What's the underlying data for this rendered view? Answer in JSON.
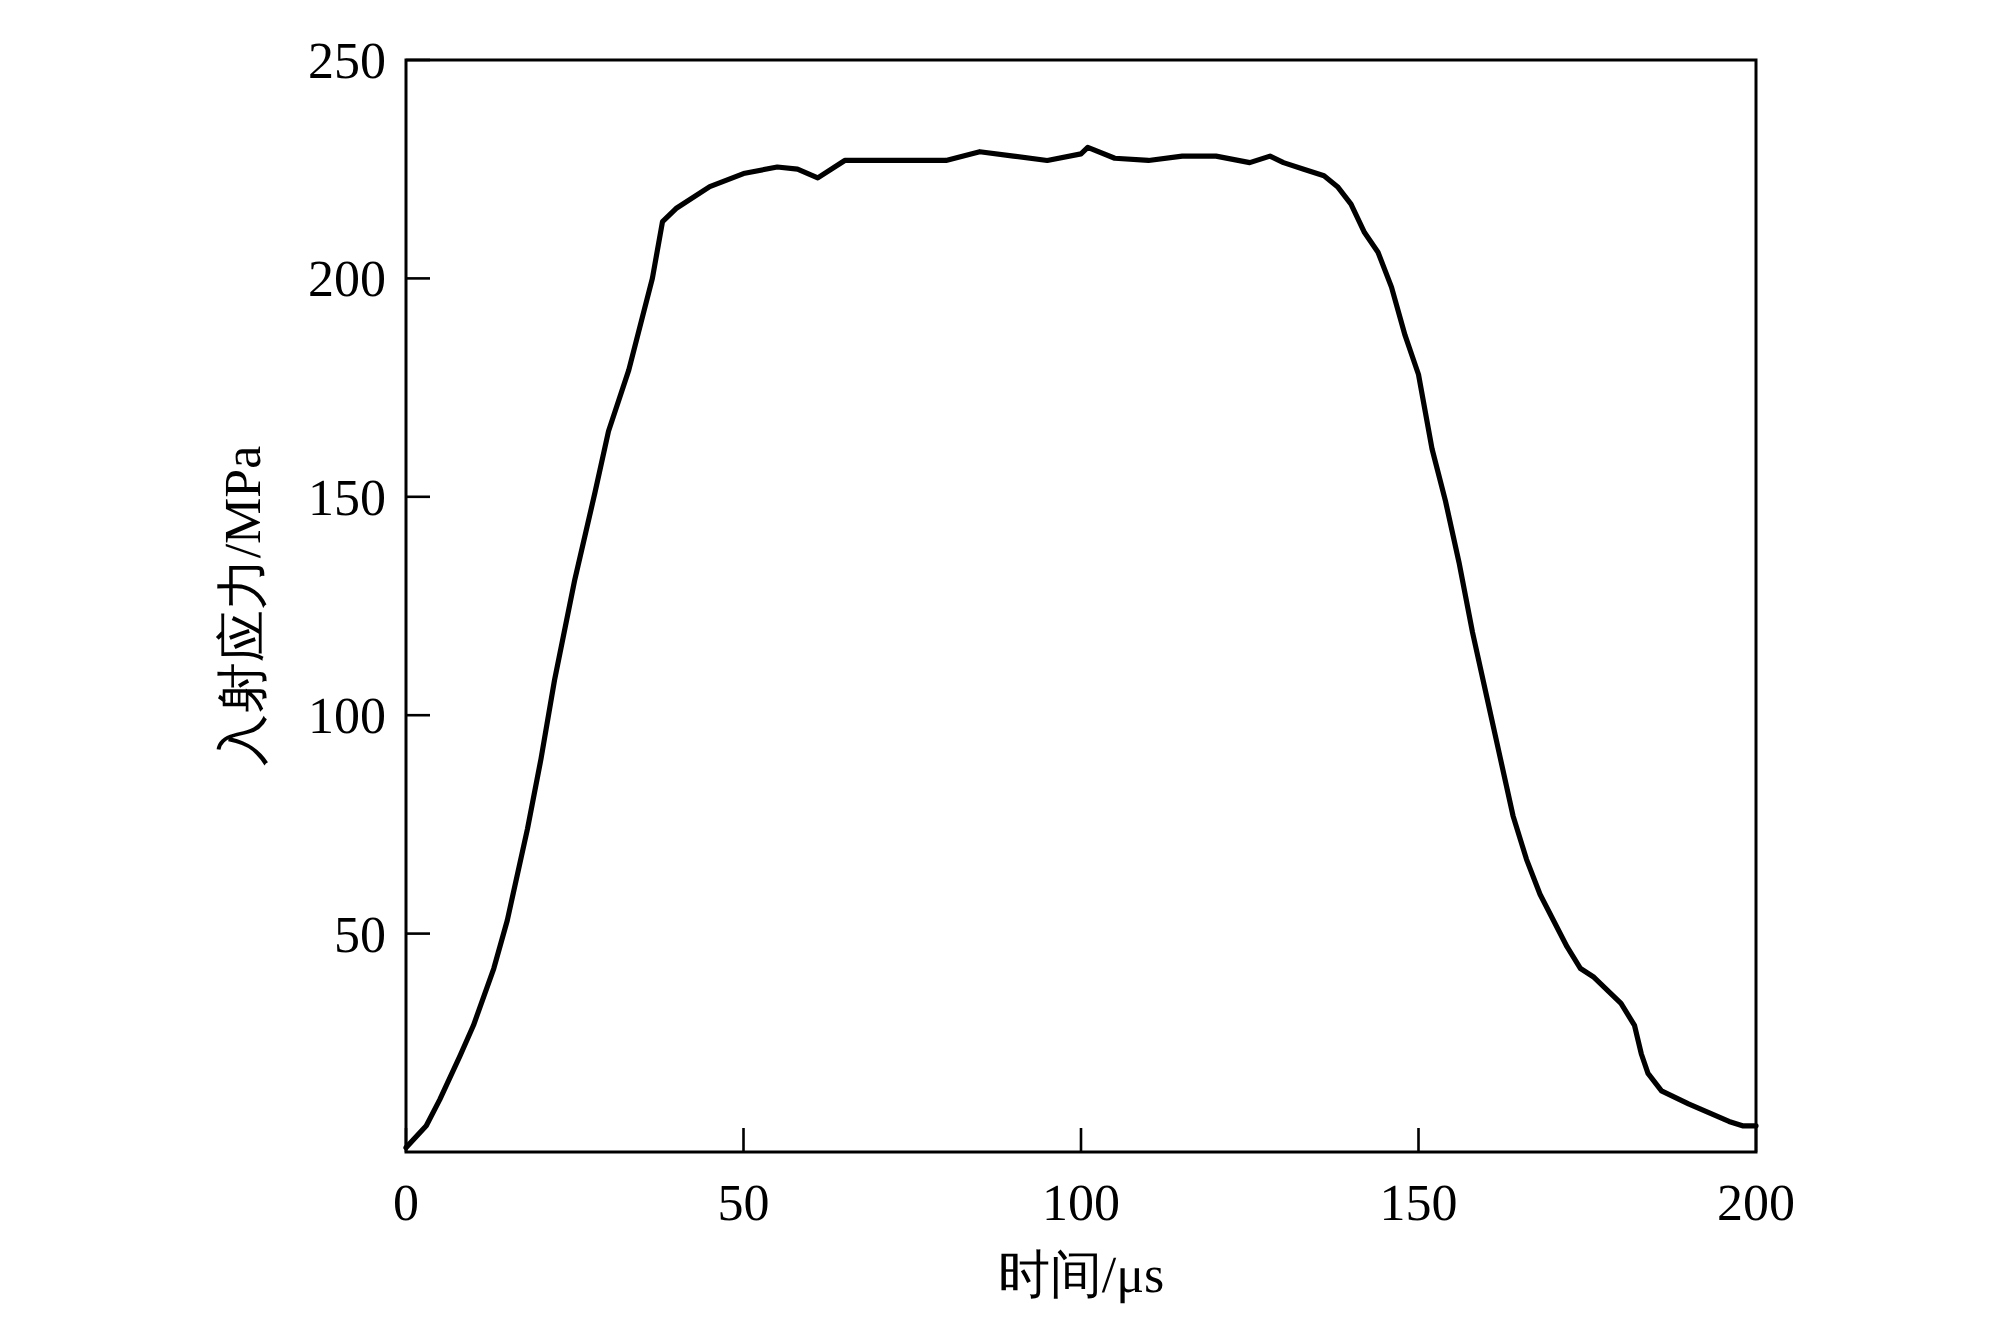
{
  "chart_data": {
    "type": "line",
    "xlabel": "时间/μs",
    "ylabel": "入射应力/MPa",
    "xlim": [
      0,
      200
    ],
    "ylim": [
      0,
      250
    ],
    "xticks": [
      0,
      50,
      100,
      150,
      200
    ],
    "yticks": [
      50,
      100,
      150,
      200,
      250
    ],
    "x": [
      0,
      3,
      5,
      8,
      10,
      13,
      15,
      18,
      20,
      22,
      25,
      28,
      30,
      33,
      35,
      36.5,
      38,
      40,
      45,
      50,
      55,
      58,
      61,
      65,
      70,
      75,
      80,
      85,
      90,
      95,
      100,
      101,
      105,
      110,
      115,
      120,
      125,
      128,
      130,
      133,
      136,
      138,
      140,
      142,
      144,
      146,
      148,
      150,
      152,
      154,
      156,
      158,
      160,
      162,
      164,
      166,
      168,
      170,
      172,
      174,
      176,
      178,
      180,
      182,
      183,
      184,
      186,
      190,
      193,
      196,
      198,
      200
    ],
    "series": [
      {
        "color": "#000000",
        "values": [
          1,
          6,
          12,
          22,
          29,
          42,
          53,
          74,
          90,
          108,
          131,
          151,
          165,
          179,
          191,
          200,
          213,
          216,
          221,
          224,
          225.5,
          225,
          223,
          227,
          227,
          227,
          227,
          229,
          228,
          227,
          228.5,
          230,
          227.5,
          227,
          228,
          228,
          226.5,
          228,
          226.5,
          225,
          223.5,
          221,
          217,
          210.5,
          206,
          198,
          187,
          178,
          161,
          149,
          135,
          119,
          105,
          91,
          77,
          67,
          59,
          53,
          47,
          42,
          40,
          37,
          34,
          29,
          22.5,
          18,
          14,
          11,
          9,
          7,
          6,
          6
        ]
      }
    ]
  }
}
